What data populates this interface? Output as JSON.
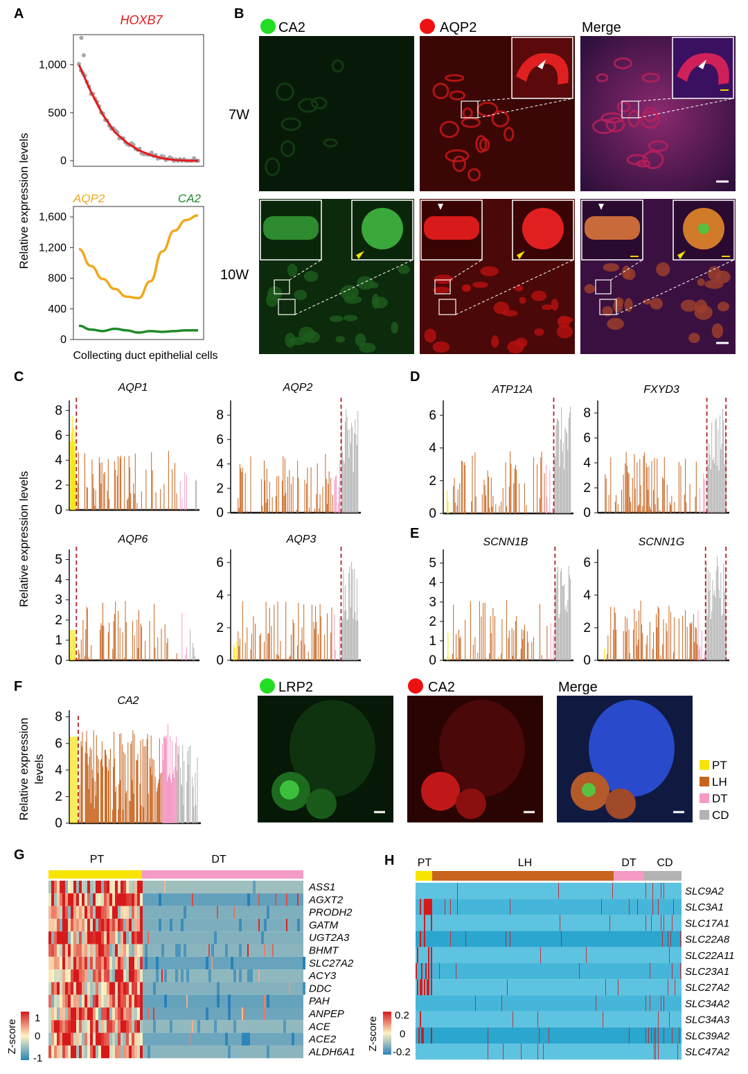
{
  "panel_letters": [
    "A",
    "B",
    "C",
    "D",
    "E",
    "F",
    "G",
    "H"
  ],
  "colors": {
    "PT": "#f7e400",
    "LH": "#c8641e",
    "DT": "#f49ac4",
    "CD": "#b3b3b3",
    "fit_red": "#e31a1c",
    "aqp2_orange": "#f0a81a",
    "ca2_green": "#1f8a2a",
    "scatter_grey": "#a6a6a6",
    "dash_red": "#b22222",
    "heat_high": "#d7191c",
    "heat_mid": "#fff2c2",
    "heat_low": "#2b83ba",
    "heat_bg": "#4cb6d9"
  },
  "panelA": {
    "ylabel": "Relative expression  levels",
    "xlabel": "Collecting duct epithelial cells",
    "top": {
      "title": "HOXB7",
      "yticks": [
        "0",
        "500",
        "1,000"
      ]
    },
    "bottom": {
      "title_left": "AQP2",
      "title_right": "CA2",
      "yticks": [
        "0",
        "400",
        "800",
        "1,200",
        "1,600"
      ]
    }
  },
  "panelB": {
    "channels": [
      {
        "label": "CA2",
        "dot": "#22dd22"
      },
      {
        "label": "AQP2",
        "dot": "#ee1111"
      },
      {
        "label": "Merge",
        "dot": ""
      }
    ],
    "rows": [
      "7W",
      "10W"
    ]
  },
  "panelsCDE": {
    "ylabel": "Relative expression  levels",
    "charts": [
      {
        "id": "AQP1",
        "title": "AQP1",
        "yticks": [
          "0",
          "2",
          "4",
          "6",
          "8"
        ]
      },
      {
        "id": "AQP2",
        "title": "AQP2",
        "yticks": [
          "0",
          "2",
          "4",
          "6",
          "8"
        ]
      },
      {
        "id": "AQP6",
        "title": "AQP6",
        "yticks": [
          "0",
          "1",
          "2",
          "3",
          "4",
          "5"
        ]
      },
      {
        "id": "AQP3",
        "title": "AQP3",
        "yticks": [
          "0",
          "2",
          "4",
          "6"
        ]
      },
      {
        "id": "ATP12A",
        "title": "ATP12A",
        "yticks": [
          "0",
          "2",
          "4",
          "6"
        ]
      },
      {
        "id": "FXYD3",
        "title": "FXYD3",
        "yticks": [
          "0",
          "2",
          "4",
          "6",
          "8"
        ]
      },
      {
        "id": "SCNN1B",
        "title": "SCNN1B",
        "yticks": [
          "0",
          "1",
          "2",
          "3",
          "4",
          "5"
        ]
      },
      {
        "id": "SCNN1G",
        "title": "SCNN1G",
        "yticks": [
          "0",
          "2",
          "4",
          "6"
        ]
      }
    ]
  },
  "panelF": {
    "ylabel_line1": "Relative expression",
    "ylabel_line2": "levels",
    "title": "CA2",
    "yticks": [
      "0",
      "2",
      "4",
      "6",
      "8"
    ],
    "images": [
      {
        "label": "LRP2",
        "dot": "#22dd22"
      },
      {
        "label": "CA2",
        "dot": "#ee1111"
      },
      {
        "label": "Merge",
        "dot": ""
      }
    ]
  },
  "legend": [
    {
      "label": "PT",
      "color": "#f7e400"
    },
    {
      "label": "LH",
      "color": "#c8641e"
    },
    {
      "label": "DT",
      "color": "#f49ac4"
    },
    {
      "label": "CD",
      "color": "#b3b3b3"
    }
  ],
  "panelG": {
    "groups": [
      "PT",
      "DT"
    ],
    "genes": [
      "ASS1",
      "AGXT2",
      "PRODH2",
      "GATM",
      "UGT2A3",
      "BHMT",
      "SLC27A2",
      "ACY3",
      "DDC",
      "PAH",
      "ANPEP",
      "ACE",
      "ACE2",
      "ALDH6A1"
    ],
    "scale_label": "Z-score",
    "scale_ticks": [
      "1",
      "0",
      "-1"
    ]
  },
  "panelH": {
    "groups": [
      "PT",
      "LH",
      "DT",
      "CD"
    ],
    "genes": [
      "SLC9A2",
      "SLC3A1",
      "SLC17A1",
      "SLC22A8",
      "SLC22A11",
      "SLC23A1",
      "SLC27A2",
      "SLC34A2",
      "SLC34A3",
      "SLC39A2",
      "SLC47A2"
    ],
    "scale_label": "Z-score",
    "scale_ticks": [
      "0.2",
      "0",
      "-0.2"
    ]
  },
  "chart_data": [
    {
      "type": "scatter",
      "title": "HOXB7",
      "xlabel": "Collecting duct epithelial cells",
      "ylabel": "Relative expression  levels",
      "ylim": [
        0,
        1300
      ],
      "x": [
        0,
        0.1,
        0.2,
        0.3,
        0.4,
        0.5,
        0.6,
        0.7,
        0.8,
        0.9,
        1.0
      ],
      "series": [
        {
          "values": [
            1000,
            720,
            480,
            300,
            190,
            110,
            60,
            25,
            8,
            2,
            0
          ]
        }
      ]
    },
    {
      "type": "line",
      "xlabel": "Collecting duct epithelial cells",
      "ylabel": "Relative expression  levels",
      "ylim": [
        0,
        1700
      ],
      "x": [
        0,
        0.1,
        0.2,
        0.3,
        0.4,
        0.5,
        0.6,
        0.7,
        0.8,
        0.9,
        1.0
      ],
      "series": [
        {
          "name": "AQP2",
          "values": [
            1180,
            960,
            790,
            660,
            560,
            540,
            760,
            1150,
            1420,
            1560,
            1620
          ]
        },
        {
          "name": "CA2",
          "values": [
            180,
            130,
            110,
            140,
            120,
            90,
            110,
            100,
            110,
            120,
            120
          ]
        }
      ]
    }
  ]
}
